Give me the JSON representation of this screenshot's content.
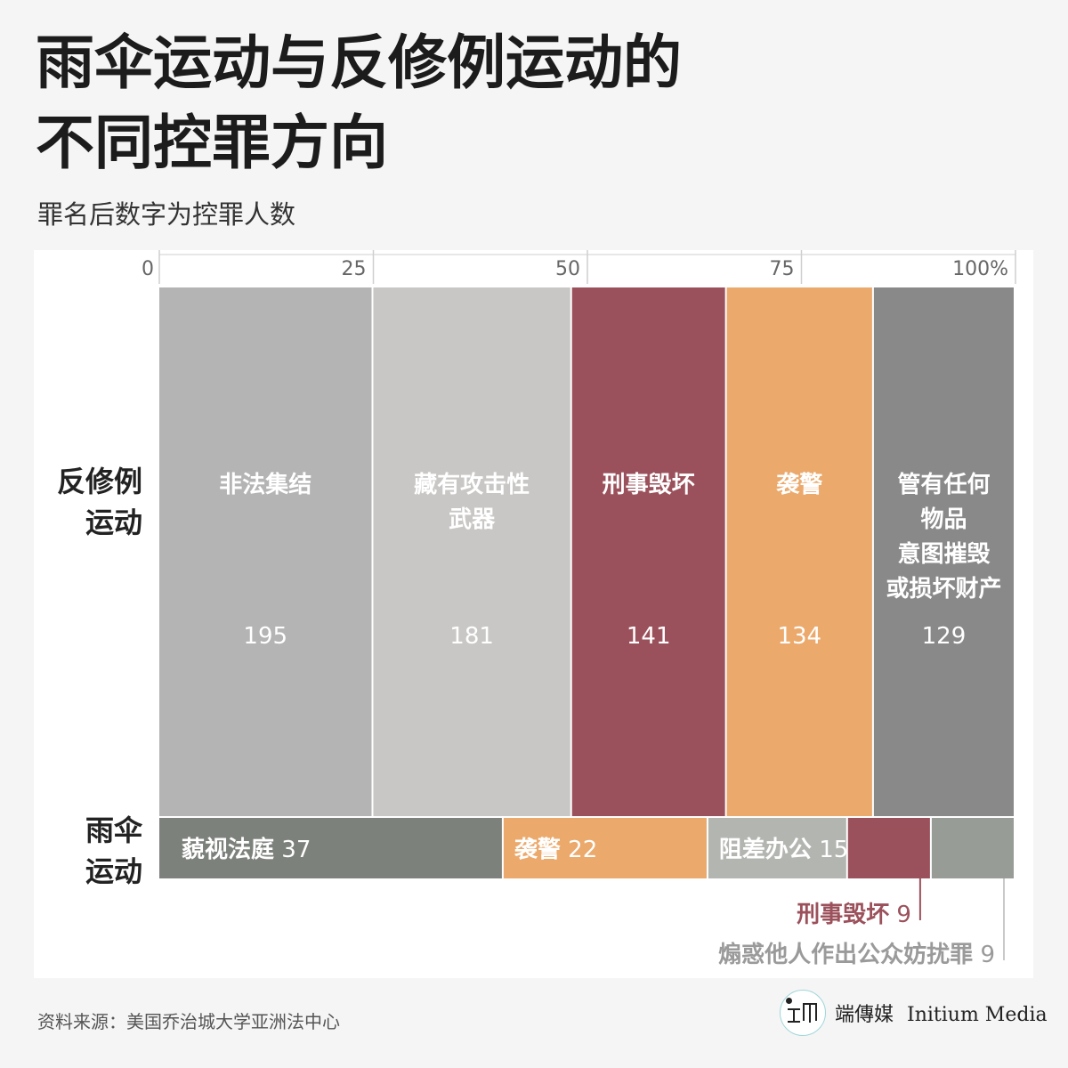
{
  "title_lines": [
    "雨伞运动与反修例运动的",
    "不同控罪方向"
  ],
  "subtitle": "罪名后数字为控罪人数",
  "source": "资料来源：美国乔治城大学亚洲法中心",
  "logo": {
    "name_zh": "端傳媒",
    "name_en": "Initium Media"
  },
  "row_labels": {
    "anti_elab": [
      "反修例",
      "运动"
    ],
    "umbrella": [
      "雨伞",
      "运动"
    ]
  },
  "chart_data": {
    "type": "bar",
    "orientation": "horizontal",
    "stacked": true,
    "percent": true,
    "x_ticks": [
      "0",
      "25",
      "50",
      "75",
      "100%"
    ],
    "xlim": [
      0,
      100
    ],
    "grid": true,
    "series": [
      {
        "row": "反修例运动",
        "categories": [
          {
            "label": "非法集结",
            "value": 195,
            "color": "#b4b4b4"
          },
          {
            "label": "藏有攻击性武器",
            "value": 181,
            "color": "#c8c7c5"
          },
          {
            "label": "刑事毁坏",
            "value": 141,
            "color": "#9b515b"
          },
          {
            "label": "袭警",
            "value": 134,
            "color": "#eba96b"
          },
          {
            "label": "管有任何物品意图摧毁或损坏财产",
            "value": 129,
            "color": "#898989"
          }
        ]
      },
      {
        "row": "雨伞运动",
        "categories": [
          {
            "label": "藐视法庭",
            "value": 37,
            "color": "#7d817b"
          },
          {
            "label": "袭警",
            "value": 22,
            "color": "#eba96b"
          },
          {
            "label": "阻差办公",
            "value": 15,
            "color": "#b3b5b0"
          },
          {
            "label": "刑事毁坏",
            "value": 9,
            "color": "#9b515b"
          },
          {
            "label": "煽惑他人作出公众妨扰罪",
            "value": 9,
            "color": "#979c96"
          }
        ]
      }
    ]
  },
  "segment_label_lines": {
    "anti_elab": [
      [
        "非法集结"
      ],
      [
        "藏有攻击性",
        "武器"
      ],
      [
        "刑事毁坏"
      ],
      [
        "袭警"
      ],
      [
        "管有任何",
        "物品",
        "意图摧毁",
        "或损坏财产"
      ]
    ]
  }
}
